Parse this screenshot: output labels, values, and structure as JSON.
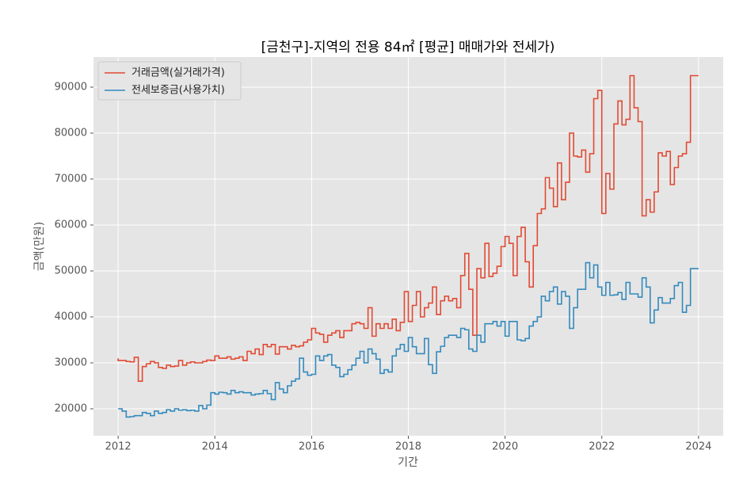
{
  "chart_data": {
    "type": "step",
    "title": "[금천구]-지역의 전용 84㎡ [평균] 매매가와 전세가)",
    "xlabel": "기간",
    "ylabel": "금액(만원)",
    "x": [
      2012,
      2012.083,
      2012.167,
      2012.25,
      2012.333,
      2012.417,
      2012.5,
      2012.583,
      2012.667,
      2012.75,
      2012.833,
      2012.917,
      2013,
      2013.083,
      2013.167,
      2013.25,
      2013.333,
      2013.417,
      2013.5,
      2013.583,
      2013.667,
      2013.75,
      2013.833,
      2013.917,
      2014,
      2014.083,
      2014.167,
      2014.25,
      2014.333,
      2014.417,
      2014.5,
      2014.583,
      2014.667,
      2014.75,
      2014.833,
      2014.917,
      2015,
      2015.083,
      2015.167,
      2015.25,
      2015.333,
      2015.417,
      2015.5,
      2015.583,
      2015.667,
      2015.75,
      2015.833,
      2015.917,
      2016,
      2016.083,
      2016.167,
      2016.25,
      2016.333,
      2016.417,
      2016.5,
      2016.583,
      2016.667,
      2016.75,
      2016.833,
      2016.917,
      2017,
      2017.083,
      2017.167,
      2017.25,
      2017.333,
      2017.417,
      2017.5,
      2017.583,
      2017.667,
      2017.75,
      2017.833,
      2017.917,
      2018,
      2018.083,
      2018.167,
      2018.25,
      2018.333,
      2018.417,
      2018.5,
      2018.583,
      2018.667,
      2018.75,
      2018.833,
      2018.917,
      2019,
      2019.083,
      2019.167,
      2019.25,
      2019.333,
      2019.417,
      2019.5,
      2019.583,
      2019.667,
      2019.75,
      2019.833,
      2019.917,
      2020,
      2020.083,
      2020.167,
      2020.25,
      2020.333,
      2020.417,
      2020.5,
      2020.583,
      2020.667,
      2020.75,
      2020.833,
      2020.917,
      2021,
      2021.083,
      2021.167,
      2021.25,
      2021.333,
      2021.417,
      2021.5,
      2021.583,
      2021.667,
      2021.75,
      2021.833,
      2021.917,
      2022,
      2022.083,
      2022.167,
      2022.25,
      2022.333,
      2022.417,
      2022.5,
      2022.583,
      2022.667,
      2022.75,
      2022.833,
      2022.917,
      2023,
      2023.083,
      2023.167,
      2023.25,
      2023.333,
      2023.417,
      2023.5,
      2023.583,
      2023.667,
      2023.75,
      2023.833,
      2023.917
    ],
    "series": [
      {
        "name": "거래금액(실거래가격)",
        "color": "#e24a33",
        "values": [
          31000,
          30500,
          30500,
          30300,
          30200,
          31200,
          26000,
          29200,
          29800,
          30300,
          30000,
          29000,
          28800,
          29500,
          29200,
          29300,
          30500,
          29500,
          30000,
          30200,
          30000,
          30000,
          30300,
          30600,
          30500,
          31500,
          31000,
          31000,
          31300,
          30800,
          31000,
          31300,
          30500,
          32500,
          32000,
          33000,
          31800,
          34000,
          33500,
          34000,
          31900,
          33500,
          33500,
          33000,
          33800,
          33500,
          33700,
          34500,
          35000,
          37500,
          36500,
          36200,
          34500,
          36000,
          36500,
          37000,
          35500,
          37000,
          37000,
          38500,
          38800,
          38500,
          37500,
          42000,
          35800,
          38500,
          37500,
          38500,
          37500,
          39500,
          37000,
          38800,
          45500,
          39000,
          42500,
          45500,
          40000,
          42000,
          43000,
          46500,
          40500,
          43500,
          44500,
          43500,
          44000,
          42000,
          49000,
          53800,
          46000,
          36000,
          50500,
          48500,
          56000,
          48800,
          49500,
          51000,
          55300,
          57500,
          56000,
          49000,
          57500,
          59500,
          52000,
          46500,
          55500,
          62500,
          63500,
          70300,
          68000,
          64000,
          73500,
          65500,
          69300,
          80000,
          75000,
          74800,
          76300,
          71500,
          75500,
          87500,
          89300,
          62500,
          71200,
          67800,
          82000,
          87000,
          81800,
          83000,
          92500,
          85500,
          82500,
          62000,
          65500,
          62800,
          67200,
          75700,
          75000,
          76000,
          68800,
          72500,
          75000,
          75500,
          78000,
          92500
        ]
      },
      {
        "name": "전세보증금(사용가치)",
        "color": "#348abd",
        "values": [
          20000,
          20000,
          19500,
          18200,
          18300,
          18500,
          18500,
          19200,
          19000,
          18500,
          19500,
          19000,
          19200,
          19800,
          19500,
          20000,
          19700,
          19800,
          19600,
          19700,
          19500,
          20700,
          20000,
          20800,
          23500,
          23200,
          23600,
          23500,
          23200,
          24000,
          23500,
          23700,
          23500,
          23500,
          23000,
          23200,
          23300,
          24000,
          23300,
          22000,
          25700,
          24300,
          23500,
          25000,
          26000,
          26500,
          31000,
          28000,
          27300,
          27500,
          31500,
          30500,
          31500,
          31800,
          29500,
          29000,
          27000,
          27500,
          28500,
          29500,
          31000,
          32500,
          30000,
          33000,
          32000,
          30800,
          27700,
          28500,
          28000,
          31500,
          33000,
          34000,
          32500,
          35500,
          33500,
          32000,
          32000,
          35300,
          29600,
          27700,
          32400,
          33600,
          35500,
          36000,
          36000,
          35500,
          37500,
          37200,
          33000,
          32500,
          36000,
          34500,
          38500,
          38500,
          39000,
          38000,
          39000,
          35800,
          39000,
          39000,
          35000,
          34800,
          35300,
          38000,
          39000,
          40000,
          44500,
          43500,
          45500,
          46500,
          42800,
          45500,
          44500,
          37500,
          42000,
          46000,
          46000,
          51800,
          48500,
          51300,
          46500,
          44700,
          47500,
          44700,
          44800,
          45300,
          43800,
          47500,
          45000,
          45000,
          44300,
          48500,
          46500,
          38700,
          41500,
          44200,
          43000,
          43000,
          44000,
          46800,
          47500,
          41000,
          42500,
          50500
        ]
      }
    ],
    "xlim": [
      2011.49,
      2024.51
    ],
    "xticks": [
      2012,
      2014,
      2016,
      2018,
      2020,
      2022,
      2024
    ],
    "ylim": [
      14140,
      96550
    ],
    "yticks": [
      20000,
      30000,
      40000,
      50000,
      60000,
      70000,
      80000,
      90000
    ],
    "grid": true,
    "legend": "upper left"
  }
}
